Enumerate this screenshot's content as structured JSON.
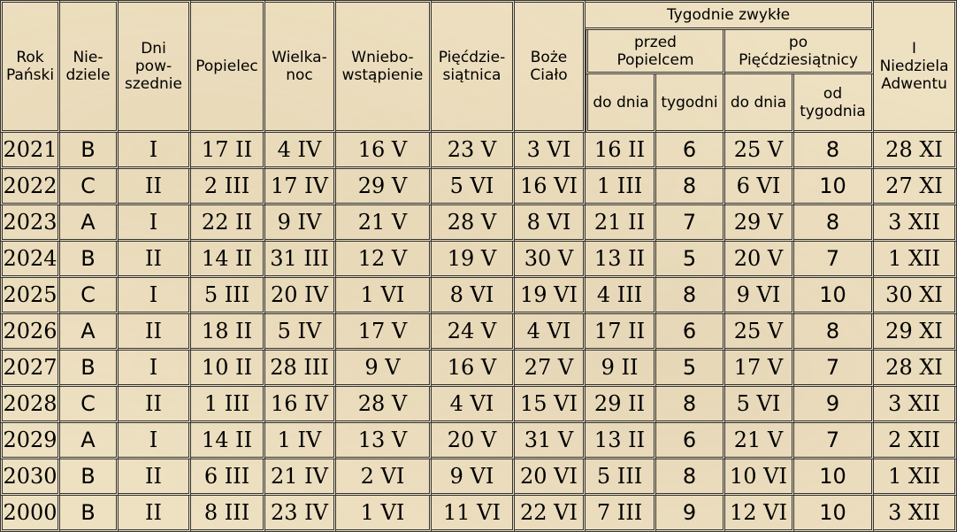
{
  "headers": {
    "rok": "Rok\nPański",
    "niedziele": "Nie-\ndziele",
    "dni": "Dni\npow-\nszednie",
    "popielec": "Popielec",
    "wielkanoc": "Wielka-\nnoc",
    "wniebo": "Wniebo-\nwstąpienie",
    "piecdz": "Pięćdzie-\nsiątnica",
    "boze": "Boże\nCiało",
    "tygodnie": "Tygodnie zwykłe",
    "przed": "przed\nPopielcem",
    "po": "po\nPięćdziesiątnicy",
    "do_dnia_1": "do dnia",
    "tygodni": "tygodni",
    "do_dnia_2": "do dnia",
    "od_tygodnia": "od\ntygodnia",
    "adwent": "I\nNiedziela\nAdwentu"
  },
  "rows": [
    [
      "2021",
      "B",
      "I",
      "17 II",
      "4 IV",
      "16 V",
      "23 V",
      "3 VI",
      "16 II",
      "6",
      "25 V",
      "8",
      "28 XI"
    ],
    [
      "2022",
      "C",
      "II",
      "2 III",
      "17 IV",
      "29 V",
      "5 VI",
      "16 VI",
      "1 III",
      "8",
      "6 VI",
      "10",
      "27 XI"
    ],
    [
      "2023",
      "A",
      "I",
      "22 II",
      "9 IV",
      "21 V",
      "28 V",
      "8 VI",
      "21 II",
      "7",
      "29 V",
      "8",
      "3 XII"
    ],
    [
      "2024",
      "B",
      "II",
      "14 II",
      "31 III",
      "12 V",
      "19 V",
      "30 V",
      "13 II",
      "5",
      "20 V",
      "7",
      "1 XII"
    ],
    [
      "2025",
      "C",
      "I",
      "5 III",
      "20 IV",
      "1 VI",
      "8 VI",
      "19 VI",
      "4 III",
      "8",
      "9 VI",
      "10",
      "30 XI"
    ],
    [
      "2026",
      "A",
      "II",
      "18 II",
      "5 IV",
      "17 V",
      "24 V",
      "4 VI",
      "17 II",
      "6",
      "25 V",
      "8",
      "29 XI"
    ],
    [
      "2027",
      "B",
      "I",
      "10 II",
      "28 III",
      "9 V",
      "16 V",
      "27 V",
      "9 II",
      "5",
      "17 V",
      "7",
      "28 XI"
    ],
    [
      "2028",
      "C",
      "II",
      "1 III",
      "16 IV",
      "28 V",
      "4 VI",
      "15 VI",
      "29 II",
      "8",
      "5 VI",
      "9",
      "3 XII"
    ],
    [
      "2029",
      "A",
      "I",
      "14 II",
      "1 IV",
      "13 V",
      "20 V",
      "31 V",
      "13 II",
      "6",
      "21 V",
      "7",
      "2 XII"
    ],
    [
      "2030",
      "B",
      "II",
      "6 III",
      "21 IV",
      "2 VI",
      "9 VI",
      "20 VI",
      "5 III",
      "8",
      "10 VI",
      "10",
      "1 XII"
    ],
    [
      "2000",
      "B",
      "II",
      "8 III",
      "23 IV",
      "1 VI",
      "11 VI",
      "22 VI",
      "7 III",
      "9",
      "12 VI",
      "10",
      "3 XII"
    ]
  ]
}
